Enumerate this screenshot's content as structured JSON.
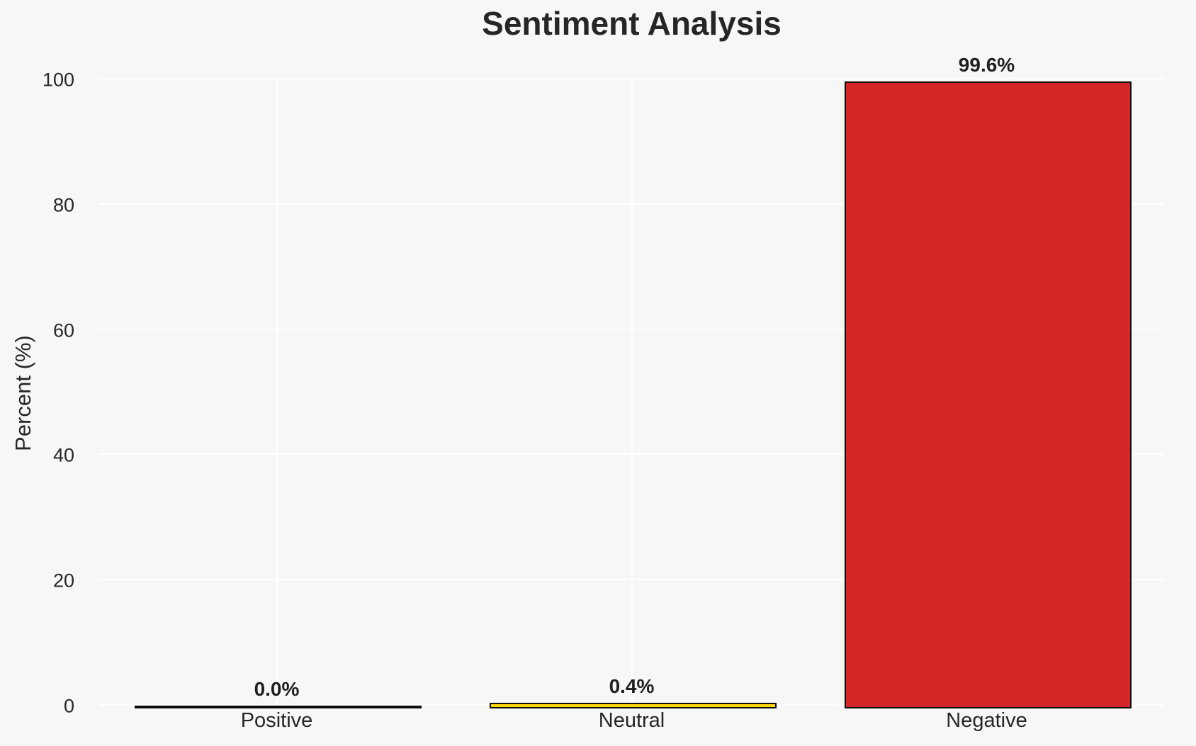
{
  "chart_data": {
    "type": "bar",
    "title": "Sentiment Analysis",
    "xlabel": "",
    "ylabel": "Percent (%)",
    "categories": [
      "Positive",
      "Neutral",
      "Negative"
    ],
    "values": [
      0.0,
      0.4,
      99.6
    ],
    "value_labels": [
      "0.0%",
      "0.4%",
      "99.6%"
    ],
    "ylim": [
      0,
      100
    ],
    "yticks": [
      0,
      20,
      40,
      60,
      80,
      100
    ],
    "grid": true,
    "legend": false,
    "bar_fill_colors": [
      null,
      "#ffd700",
      "#d62728"
    ],
    "bar_edge_color": "#0d0d0d",
    "background_color": "#f7f7f7",
    "gridline_color": "#ffffff",
    "text_color": "#262626"
  }
}
